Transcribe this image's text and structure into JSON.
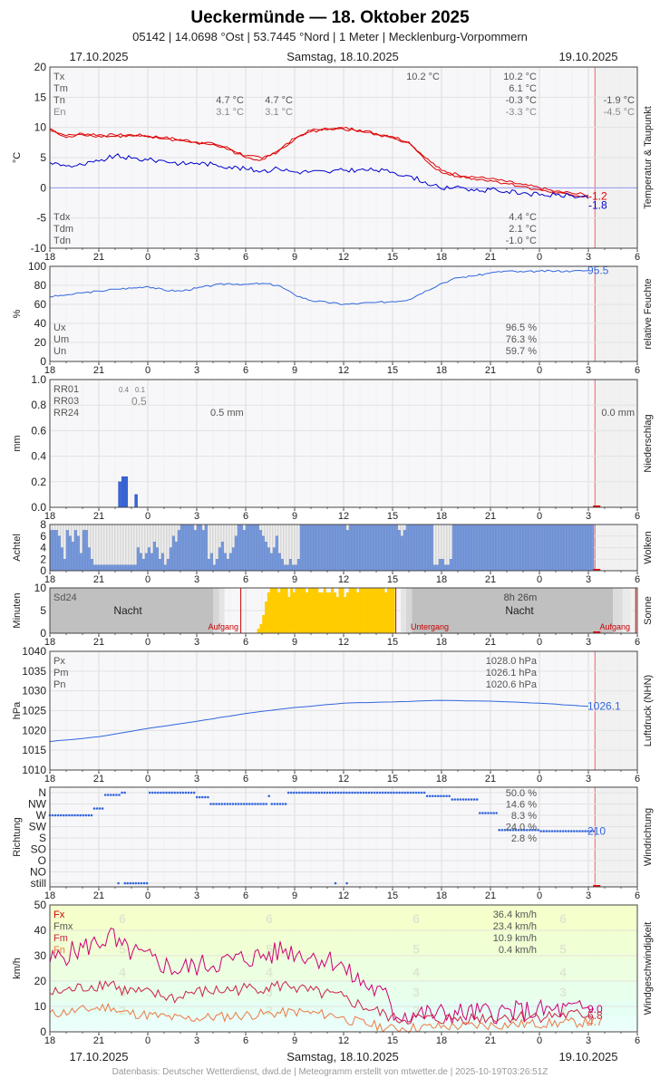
{
  "title": "Ueckermünde  —  18. Oktober 2025",
  "subtitle": "05142  |  14.0698 °Ost  |  53.7445 °Nord  |  1 Meter  |  Mecklenburg-Vorpommern",
  "date_left": "17.10.2025",
  "date_center": "Samstag, 18.10.2025",
  "date_right": "19.10.2025",
  "footer": "Datenbasis: Deutscher Wetterdienst, dwd.de | Meteogramm erstellt von mtwetter.de | 2025-10-19T03:26:51Z",
  "colors": {
    "temp": "#dd0000",
    "dew": "#0000cc",
    "blue": "#3366dd",
    "sun": "#ffcc00",
    "cloud": "#7799dd",
    "night": "#c0c0c0",
    "gust": "#cc0077",
    "mean": "#cc2244",
    "min": "#ee7744"
  },
  "x_ticks": [
    "18",
    "21",
    "0",
    "3",
    "6",
    "9",
    "12",
    "15",
    "18",
    "21",
    "0",
    "3",
    "6"
  ],
  "chart_data": [
    {
      "type": "line",
      "id": "temp",
      "ylabel": "°C",
      "side_label": "Temperatur & Taupunkt",
      "ylim": [
        -10,
        20
      ],
      "yticks": [
        "20",
        "15",
        "10",
        "5",
        "0",
        "-5",
        "-10"
      ],
      "x_range_hours": [
        18,
        54
      ],
      "series": [
        {
          "name": "Tx",
          "values_at_hours": [
            [
              18,
              9.8
            ],
            [
              19,
              8.6
            ],
            [
              20,
              9.0
            ],
            [
              21,
              8.8
            ],
            [
              22,
              8.7
            ],
            [
              23,
              8.8
            ],
            [
              0,
              8.6
            ],
            [
              1,
              8.3
            ],
            [
              2,
              8.0
            ],
            [
              3,
              7.6
            ],
            [
              4,
              7.4
            ],
            [
              5,
              6.5
            ],
            [
              6,
              5.3
            ],
            [
              7,
              4.9
            ],
            [
              8,
              6.2
            ],
            [
              9,
              8.2
            ],
            [
              10,
              9.5
            ],
            [
              11,
              9.8
            ],
            [
              12,
              9.9
            ],
            [
              13,
              9.6
            ],
            [
              14,
              9.0
            ],
            [
              15,
              8.5
            ],
            [
              16,
              7.6
            ],
            [
              17,
              5.0
            ],
            [
              18,
              2.9
            ],
            [
              19,
              2.2
            ],
            [
              20,
              1.8
            ],
            [
              21,
              1.5
            ],
            [
              22,
              1.0
            ],
            [
              23,
              0.5
            ],
            [
              24,
              0.0
            ],
            [
              25,
              -0.6
            ],
            [
              26,
              -0.9
            ],
            [
              27,
              -1.2
            ]
          ]
        },
        {
          "name": "Tm",
          "values_at_hours": [
            [
              18,
              9.6
            ],
            [
              19,
              8.3
            ],
            [
              20,
              8.8
            ],
            [
              21,
              8.6
            ],
            [
              22,
              8.5
            ],
            [
              23,
              8.6
            ],
            [
              0,
              8.4
            ],
            [
              1,
              8.1
            ],
            [
              2,
              7.8
            ],
            [
              3,
              7.4
            ],
            [
              4,
              7.2
            ],
            [
              5,
              6.3
            ],
            [
              6,
              5.0
            ],
            [
              7,
              4.7
            ],
            [
              8,
              6.0
            ],
            [
              9,
              8.0
            ],
            [
              10,
              9.3
            ],
            [
              11,
              9.6
            ],
            [
              12,
              9.7
            ],
            [
              13,
              9.4
            ],
            [
              14,
              8.8
            ],
            [
              15,
              8.3
            ],
            [
              16,
              7.4
            ],
            [
              17,
              4.6
            ],
            [
              18,
              2.5
            ],
            [
              19,
              1.9
            ],
            [
              20,
              1.5
            ],
            [
              21,
              1.2
            ],
            [
              22,
              0.7
            ],
            [
              23,
              0.2
            ],
            [
              24,
              -0.3
            ],
            [
              25,
              -0.9
            ],
            [
              26,
              -1.2
            ],
            [
              27,
              -1.5
            ]
          ]
        },
        {
          "name": "Tdm",
          "values_at_hours": [
            [
              18,
              4.2
            ],
            [
              19,
              3.6
            ],
            [
              20,
              3.8
            ],
            [
              21,
              4.4
            ],
            [
              22,
              5.3
            ],
            [
              23,
              4.9
            ],
            [
              0,
              4.6
            ],
            [
              1,
              4.5
            ],
            [
              2,
              4.0
            ],
            [
              3,
              4.1
            ],
            [
              4,
              3.9
            ],
            [
              5,
              3.5
            ],
            [
              6,
              3.1
            ],
            [
              7,
              2.8
            ],
            [
              8,
              3.2
            ],
            [
              9,
              2.6
            ],
            [
              10,
              2.7
            ],
            [
              11,
              2.6
            ],
            [
              12,
              2.9
            ],
            [
              13,
              3.0
            ],
            [
              14,
              2.9
            ],
            [
              15,
              2.6
            ],
            [
              16,
              2.0
            ],
            [
              17,
              1.0
            ],
            [
              18,
              -0.2
            ],
            [
              19,
              0.3
            ],
            [
              20,
              -0.5
            ],
            [
              21,
              -0.3
            ],
            [
              22,
              -0.6
            ],
            [
              23,
              -0.8
            ],
            [
              24,
              -1.2
            ],
            [
              25,
              -1.2
            ],
            [
              26,
              -1.3
            ],
            [
              27,
              -1.8
            ]
          ]
        }
      ],
      "left_labels": [
        "Tx",
        "Tm",
        "Tn",
        "En"
      ],
      "left_labels_bottom": [
        "Tdx",
        "Tdm",
        "Tdn"
      ],
      "annotations": [
        {
          "at_hour": 28,
          "row": 0,
          "text": "10.2 °C",
          "color": "#555555"
        },
        {
          "at_hour": 31,
          "row": 2,
          "text": "4.7 °C",
          "color": "#555555"
        },
        {
          "at_hour": 36,
          "row": 2,
          "text": "4.7 °C",
          "color": "#555555"
        },
        {
          "at_hour": 31,
          "row": 3,
          "text": "3.1 °C",
          "color": "#888888"
        },
        {
          "at_hour": 36,
          "row": 3,
          "text": "3.1 °C",
          "color": "#888888"
        },
        {
          "at_hour": 59,
          "row": 0,
          "text": "10.2 °C",
          "color": "#555555"
        },
        {
          "at_hour": 59,
          "row": 1,
          "text": "6.1 °C",
          "color": "#555555"
        },
        {
          "at_hour": 59,
          "row": 2,
          "text": "-0.3 °C",
          "color": "#555555"
        },
        {
          "at_hour": 59,
          "row": 3,
          "text": "-3.3 °C",
          "color": "#888888"
        },
        {
          "at_hour": 69,
          "row": 2,
          "text": "-1.9 °C",
          "color": "#555555"
        },
        {
          "at_hour": 69,
          "row": 3,
          "text": "-4.5 °C",
          "color": "#888888"
        }
      ],
      "bottom_stats": [
        "4.4 °C",
        "2.1 °C",
        "-1.0 °C"
      ],
      "end_values": [
        {
          "text": "-1.2",
          "color": "#dd0000"
        },
        {
          "text": "-1.8",
          "color": "#0000cc"
        }
      ]
    },
    {
      "type": "line",
      "id": "hum",
      "ylabel": "%",
      "side_label": "relative Feuchte",
      "ylim": [
        0,
        100
      ],
      "yticks": [
        "100",
        "80",
        "60",
        "40",
        "20",
        "0"
      ],
      "series": [
        {
          "name": "Um",
          "values_at_hours": [
            [
              18,
              68
            ],
            [
              19,
              70
            ],
            [
              20,
              72
            ],
            [
              21,
              74
            ],
            [
              22,
              76
            ],
            [
              23,
              77
            ],
            [
              0,
              79
            ],
            [
              1,
              75
            ],
            [
              2,
              74
            ],
            [
              3,
              77
            ],
            [
              4,
              80
            ],
            [
              5,
              82
            ],
            [
              6,
              81
            ],
            [
              7,
              82
            ],
            [
              8,
              80
            ],
            [
              9,
              70
            ],
            [
              10,
              64
            ],
            [
              11,
              62
            ],
            [
              12,
              60
            ],
            [
              13,
              61
            ],
            [
              14,
              62
            ],
            [
              15,
              63
            ],
            [
              16,
              65
            ],
            [
              17,
              74
            ],
            [
              18,
              82
            ],
            [
              19,
              88
            ],
            [
              20,
              90
            ],
            [
              21,
              93
            ],
            [
              22,
              95
            ],
            [
              23,
              94
            ],
            [
              24,
              95
            ],
            [
              25,
              95
            ],
            [
              26,
              95
            ],
            [
              27,
              95.5
            ]
          ]
        }
      ],
      "left_labels": [
        "Ux",
        "Um",
        "Un"
      ],
      "bottom_stats": [
        "96.5 %",
        "76.3 %",
        "59.7 %"
      ],
      "end_values": [
        {
          "text": "95.5",
          "color": "#3366dd"
        }
      ]
    },
    {
      "type": "bar",
      "id": "precip",
      "ylabel": "mm",
      "side_label": "Niederschlag",
      "ylim": [
        0,
        1.0
      ],
      "yticks": [
        "1.0",
        "0.8",
        "0.6",
        "0.4",
        "0.2",
        "0.0"
      ],
      "bars_at_hours": [
        [
          22.2,
          0.2
        ],
        [
          22.4,
          0.24
        ],
        [
          22.6,
          0.24
        ],
        [
          23.2,
          0.1
        ]
      ],
      "left_labels": [
        "RR01",
        "RR03",
        "RR24"
      ],
      "small_labels": [
        "0.4",
        "0.1"
      ],
      "rr03_value": "0.5",
      "rr24_values": [
        "0.5 mm",
        "0.0 mm"
      ]
    },
    {
      "type": "bar",
      "id": "cloud",
      "ylabel": "Achtel",
      "side_label": "Wolken",
      "ylim": [
        0,
        8
      ],
      "yticks": [
        "8",
        "6",
        "4",
        "2",
        "0"
      ]
    },
    {
      "type": "bar",
      "id": "sun",
      "ylabel": "Minuten",
      "side_label": "Sonne",
      "ylim": [
        0,
        10
      ],
      "yticks": [
        "10",
        "5",
        "0"
      ],
      "labels": {
        "sd24": "Sd24",
        "night": "Nacht",
        "sunrise": "Aufgang",
        "sunset": "Untergang",
        "duration": "8h 26m"
      }
    },
    {
      "type": "line",
      "id": "press",
      "ylabel": "hPa",
      "side_label": "Luftdruck (NHN)",
      "ylim": [
        1010,
        1040
      ],
      "yticks": [
        "1040",
        "1035",
        "1030",
        "1025",
        "1020",
        "1015",
        "1010"
      ],
      "series": [
        {
          "name": "Pm",
          "values_at_hours": [
            [
              18,
              1017.2
            ],
            [
              21,
              1018.4
            ],
            [
              0,
              1020.5
            ],
            [
              3,
              1022.3
            ],
            [
              6,
              1024.3
            ],
            [
              9,
              1025.8
            ],
            [
              12,
              1026.9
            ],
            [
              15,
              1027.2
            ],
            [
              18,
              1027.6
            ],
            [
              21,
              1027.4
            ],
            [
              24,
              1026.9
            ],
            [
              27,
              1026.1
            ]
          ]
        }
      ],
      "left_labels": [
        "Px",
        "Pm",
        "Pn"
      ],
      "bottom_stats": [
        "1028.0 hPa",
        "1026.1 hPa",
        "1020.6 hPa"
      ],
      "end_values": [
        {
          "text": "1026.1",
          "color": "#3366dd"
        }
      ]
    },
    {
      "type": "scatter",
      "id": "wdir",
      "ylabel": "Richtung",
      "side_label": "Windrichtung",
      "categories": [
        "N",
        "NW",
        "W",
        "SW",
        "S",
        "SO",
        "O",
        "NO",
        "still"
      ],
      "freq": [
        "50.0 %",
        "14.6 %",
        "8.3 %",
        "24.0 %",
        "2.8 %"
      ],
      "end_values": [
        {
          "text": "210",
          "color": "#3366dd"
        }
      ]
    },
    {
      "type": "line",
      "id": "wind",
      "ylabel": "km/h",
      "side_label": "Windgeschwindigkeit",
      "ylim": [
        0,
        50
      ],
      "yticks": [
        "50",
        "40",
        "30",
        "20",
        "10",
        "0"
      ],
      "left_labels": [
        "Fx",
        "Fmx",
        "Fm",
        "Fn"
      ],
      "bottom_stats": [
        "36.4 km/h",
        "23.4 km/h",
        "10.9 km/h",
        "0.4 km/h"
      ],
      "bft": [
        "6",
        "5",
        "4",
        "3",
        "2"
      ],
      "end_values": [
        {
          "text": "9.0",
          "color": "#cc0077"
        },
        {
          "text": "6.8",
          "color": "#cc2244"
        },
        {
          "text": "4.7",
          "color": "#ee7744"
        }
      ]
    }
  ]
}
